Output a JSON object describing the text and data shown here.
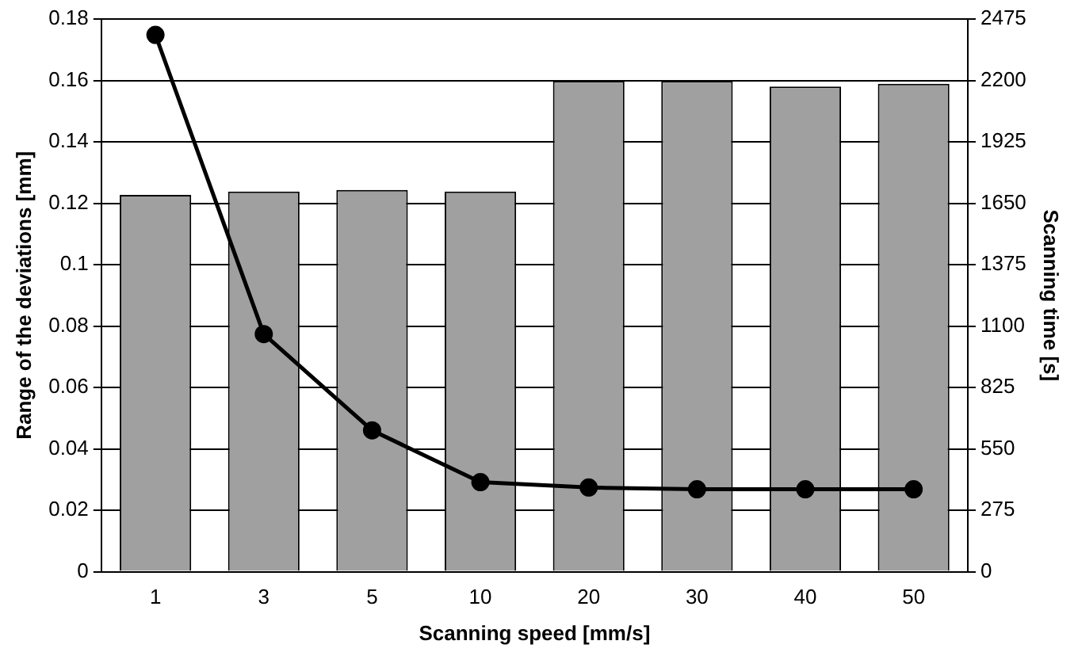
{
  "chart_data": {
    "type": "bar",
    "xlabel": "Scanning speed [mm/s]",
    "ylabel": "Range of the deviations [mm]",
    "y2label": "Scanning time [s]",
    "categories": [
      "1",
      "3",
      "5",
      "10",
      "20",
      "30",
      "40",
      "50"
    ],
    "series": [
      {
        "color": "#a0a0a0",
        "values": [
          0.1227,
          0.1238,
          0.1243,
          0.1238,
          0.1598,
          0.1598,
          0.158,
          0.1589
        ]
      },
      {
        "type": "line",
        "axis": "y2",
        "color": "#000000",
        "marker": "circle",
        "line_style": "solid",
        "values": [
          2404,
          1064,
          633,
          401,
          377,
          369,
          369,
          369
        ]
      }
    ],
    "ylim": [
      0,
      0.18
    ],
    "yticks": [
      0,
      0.02,
      0.04,
      0.06,
      0.08,
      0.1,
      0.12,
      0.14,
      0.16,
      0.18
    ],
    "y2lim": [
      0,
      2475
    ],
    "y2ticks": [
      0,
      275,
      550,
      825,
      1100,
      1375,
      1650,
      1925,
      2200,
      2475
    ],
    "grid": "y",
    "legend": false
  }
}
